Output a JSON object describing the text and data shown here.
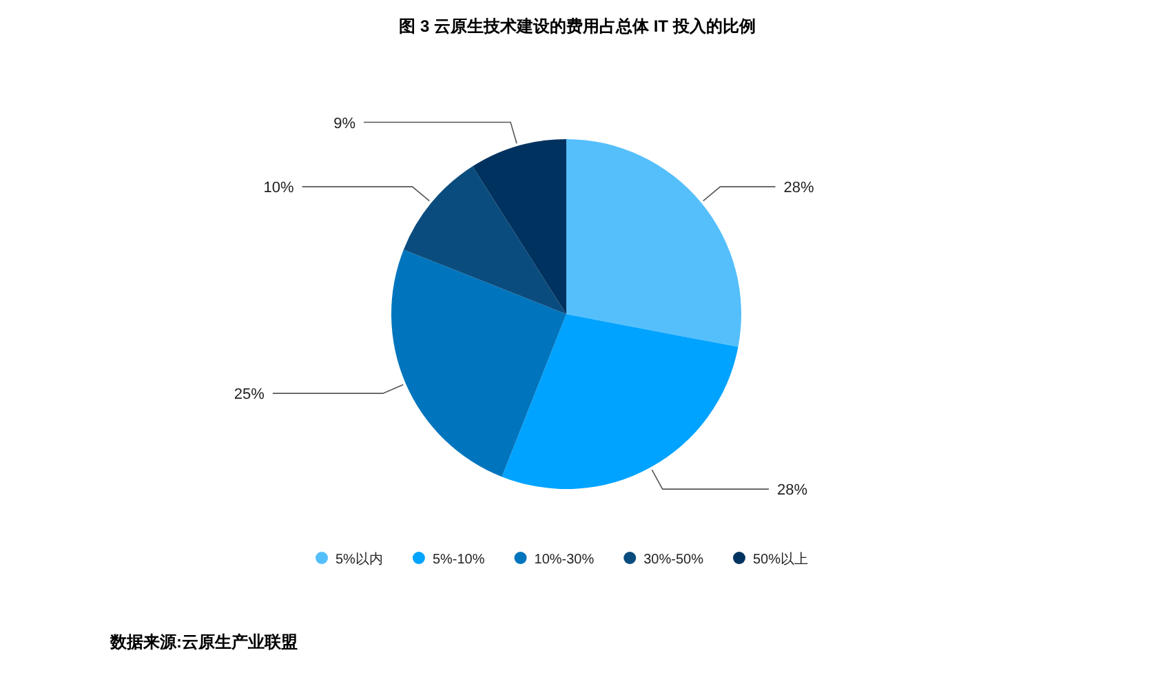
{
  "chart_data": {
    "type": "pie",
    "title": "图  3  云原生技术建设的费用占总体 IT 投入的比例",
    "categories": [
      "5%以内",
      "5%-10%",
      "10%-30%",
      "30%-50%",
      "50%以上"
    ],
    "values": [
      28,
      28,
      25,
      10,
      9
    ],
    "value_labels": [
      "28%",
      "28%",
      "25%",
      "10%",
      "9%"
    ],
    "colors": [
      "#55bffc",
      "#00a3ff",
      "#0075bd",
      "#0a4c7d",
      "#00325f"
    ],
    "legend": "bottom",
    "annotations": [
      "数据来源:云原生产业联盟"
    ]
  }
}
